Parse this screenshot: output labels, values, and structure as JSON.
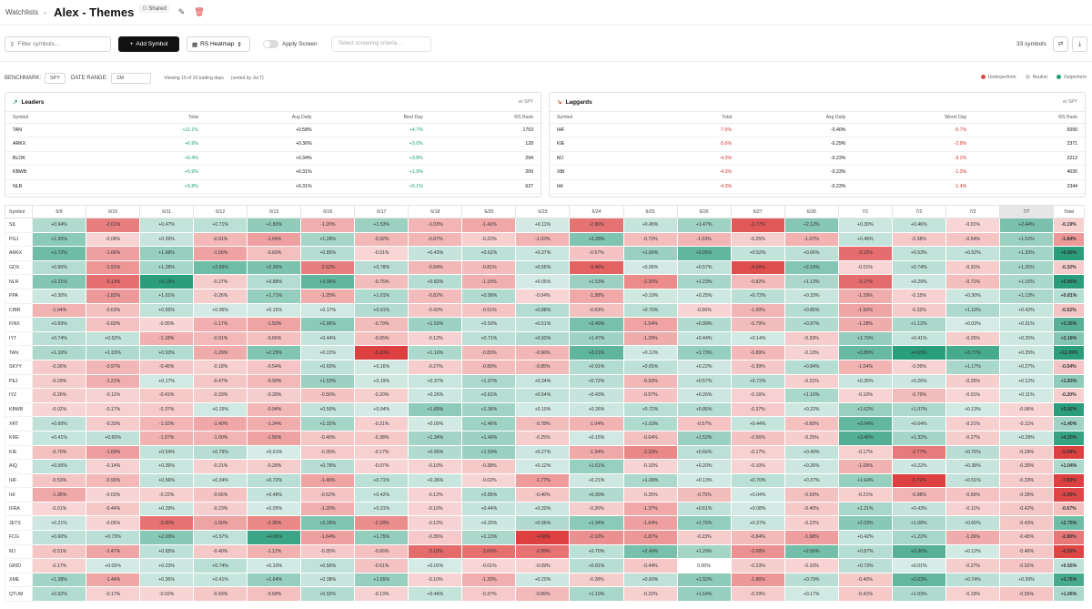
{
  "header": {
    "breadcrumb": "Watchlists",
    "title": "Alex - Themes",
    "shared_label": "Shared"
  },
  "toolbar": {
    "filter_placeholder": "Filter symbols...",
    "add_symbol": "Add Symbol",
    "view_select": "RS Heatmap",
    "apply_screen": "Apply Screen",
    "criteria_placeholder": "Select screening criteria...",
    "symbol_count": "33 symbols"
  },
  "benchmark": {
    "label": "BENCHMARK:",
    "value": "SPY",
    "date_range_label": "DATE RANGE:",
    "date_range": "1M",
    "viewing": "Viewing 19 of 19 trading days",
    "sorted": "(sorted by Jul 7)"
  },
  "legend": {
    "underperform": "Underperform",
    "neutral": "Neutral",
    "outperform": "Outperform"
  },
  "colors": {
    "pos": "#1b9a70",
    "neg": "#d03434",
    "strong_pos": "#3aa58a",
    "strong_neg": "#dd4d4d"
  },
  "leaders": {
    "title": "Leaders",
    "subtitle": "vs SPY",
    "columns": [
      "Symbol",
      "Total",
      "Avg Daily",
      "Best Day",
      "RS Rank"
    ],
    "rows": [
      [
        "TAN",
        "+11.1%",
        "+0.58%",
        "+4.7%",
        "1753"
      ],
      [
        "ARKX",
        "+6.9%",
        "+0.36%",
        "+3.0%",
        "128"
      ],
      [
        "BLOK",
        "+6.4%",
        "+0.34%",
        "+3.8%",
        "294"
      ],
      [
        "KBWB",
        "+5.9%",
        "+0.31%",
        "+1.9%",
        "209"
      ],
      [
        "NLR",
        "+5.8%",
        "+0.31%",
        "+5.1%",
        "627"
      ]
    ]
  },
  "laggards": {
    "title": "Laggards",
    "subtitle": "vs SPY",
    "columns": [
      "Symbol",
      "Total",
      "Avg Daily",
      "Worst Day",
      "RS Rank"
    ],
    "rows": [
      [
        "IHF",
        "-7.6%",
        "-0.40%",
        "-5.7%",
        "5090"
      ],
      [
        "KIE",
        "-5.6%",
        "-0.29%",
        "-2.8%",
        "2371"
      ],
      [
        "MJ",
        "-4.3%",
        "-0.23%",
        "-3.2%",
        "2212"
      ],
      [
        "XBI",
        "-4.3%",
        "-0.23%",
        "-1.3%",
        "4030"
      ],
      [
        "IHI",
        "-4.3%",
        "-0.23%",
        "-1.4%",
        "2344"
      ]
    ]
  },
  "heatmap": {
    "columns": [
      "Symbol",
      "6/9",
      "6/10",
      "6/11",
      "6/12",
      "6/13",
      "6/16",
      "6/17",
      "6/18",
      "6/20",
      "6/23",
      "6/24",
      "6/25",
      "6/26",
      "6/27",
      "6/30",
      "7/1",
      "7/2",
      "7/3",
      "7/7",
      "Total"
    ],
    "rows": [
      {
        "s": "SIL",
        "v": [
          "+0.94%",
          "-2.61%",
          "+0.47%",
          "+0.71%",
          "+1.80%",
          "-1.20%",
          "+1.53%",
          "-1.03%",
          "-1.41%",
          "+0.11%",
          "-2.96%",
          "+0.45%",
          "+1.47%",
          "-3.77%",
          "+2.12%",
          "+0.30%",
          "+0.46%",
          "-0.01%",
          "+2.44%"
        ],
        "t": "-0.19%"
      },
      {
        "s": "PGJ",
        "v": [
          "+1.95%",
          "-0.08%",
          "+0.39%",
          "-0.91%",
          "-1.64%",
          "+1.28%",
          "-0.92%",
          "-0.97%",
          "-0.22%",
          "-1.02%",
          "+2.28%",
          "-0.72%",
          "-1.03%",
          "-0.25%",
          "-1.07%",
          "+0.49%",
          "-0.38%",
          "-0.54%",
          "+1.52%"
        ],
        "t": "-1.84%"
      },
      {
        "s": "ARKX",
        "v": [
          "+2.72%",
          "-1.66%",
          "+1.68%",
          "-1.56%",
          "-0.69%",
          "+0.85%",
          "-0.01%",
          "+0.43%",
          "+0.62%",
          "+0.37%",
          "-0.57%",
          "+1.60%",
          "+3.05%",
          "+0.52%",
          "+0.66%",
          "-3.15%",
          "+0.53%",
          "+0.52%",
          "+1.33%"
        ],
        "t": "+6.89%"
      },
      {
        "s": "GDX",
        "v": [
          "+0.90%",
          "-1.91%",
          "+1.28%",
          "+2.66%",
          "+2.36%",
          "-2.62%",
          "+0.78%",
          "-0.94%",
          "-0.81%",
          "+0.56%",
          "-3.46%",
          "+0.06%",
          "+0.57%",
          "-4.09%",
          "+2.14%",
          "-0.01%",
          "+0.74%",
          "-0.31%",
          "+1.25%"
        ],
        "t": "-0.32%"
      },
      {
        "s": "NLR",
        "v": [
          "+2.21%",
          "-3.13%",
          "+5.13%",
          "-0.27%",
          "+0.88%",
          "+3.06%",
          "-0.75%",
          "+0.83%",
          "-1.15%",
          "+0.05%",
          "+1.53%",
          "-2.25%",
          "+1.23%",
          "-0.82%",
          "+1.13%",
          "-3.17%",
          "+0.29%",
          "-0.71%",
          "+1.15%"
        ],
        "t": "+5.85%"
      },
      {
        "s": "PPA",
        "v": [
          "+0.30%",
          "-1.82%",
          "+1.01%",
          "-0.26%",
          "+1.71%",
          "-1.25%",
          "+1.01%",
          "-0.82%",
          "+0.96%",
          "-0.04%",
          "-1.38%",
          "+0.19%",
          "+0.25%",
          "+0.72%",
          "+0.33%",
          "-1.29%",
          "-0.15%",
          "+0.30%",
          "+1.13%"
        ],
        "t": "+0.81%"
      },
      {
        "s": "CIBR",
        "v": [
          "-1.04%",
          "-0.63%",
          "+0.55%",
          "+0.06%",
          "+0.15%",
          "+0.17%",
          "+0.91%",
          "-0.42%",
          "-0.51%",
          "+0.88%",
          "-0.63%",
          "+0.70%",
          "-0.06%",
          "-1.00%",
          "+0.85%",
          "-1.50%",
          "-0.32%",
          "+1.10%",
          "+0.42%"
        ],
        "t": "-0.52%"
      },
      {
        "s": "FINX",
        "v": [
          "+0.69%",
          "-0.60%",
          "-0.05%",
          "-1.17%",
          "-1.50%",
          "+1.96%",
          "-0.79%",
          "+1.50%",
          "+0.50%",
          "+0.51%",
          "+2.49%",
          "-1.54%",
          "+0.99%",
          "-0.79%",
          "+0.97%",
          "-1.28%",
          "+1.12%",
          "+0.03%",
          "+0.31%"
        ],
        "t": "+3.35%"
      },
      {
        "s": "IYT",
        "v": [
          "+0.74%",
          "+0.52%",
          "-1.18%",
          "-0.91%",
          "-0.66%",
          "+0.44%",
          "-0.65%",
          "-0.12%",
          "+0.71%",
          "+0.93%",
          "+1.47%",
          "-1.29%",
          "+0.44%",
          "+0.14%",
          "-0.33%",
          "+1.70%",
          "+0.41%",
          "-0.25%",
          "+0.25%"
        ],
        "t": "+2.18%"
      },
      {
        "s": "TAN",
        "v": [
          "+1.10%",
          "+1.03%",
          "+0.93%",
          "-1.29%",
          "+2.25%",
          "+0.22%",
          "-5.30%",
          "+1.10%",
          "-0.83%",
          "-0.96%",
          "+3.11%",
          "+0.12%",
          "+1.73%",
          "-0.89%",
          "-0.13%",
          "+2.89%",
          "+4.65%",
          "+3.77%",
          "+0.25%"
        ],
        "t": "+11.09%"
      },
      {
        "s": "SKYY",
        "v": [
          "-0.36%",
          "-0.97%",
          "-0.46%",
          "-0.18%",
          "-0.54%",
          "+0.60%",
          "+0.16%",
          "-0.27%",
          "-0.80%",
          "-0.85%",
          "+0.91%",
          "+0.65%",
          "+0.22%",
          "-0.39%",
          "+0.84%",
          "-1.04%",
          "-0.09%",
          "+1.17%",
          "+0.27%"
        ],
        "t": "-0.54%"
      },
      {
        "s": "PEJ",
        "v": [
          "-0.29%",
          "-1.21%",
          "+0.17%",
          "-0.47%",
          "-0.90%",
          "+1.53%",
          "+0.19%",
          "+0.37%",
          "+1.07%",
          "+0.34%",
          "+0.72%",
          "-0.93%",
          "+0.57%",
          "+0.72%",
          "-0.21%",
          "+0.35%",
          "+0.26%",
          "-0.25%",
          "+0.12%"
        ],
        "t": "+1.83%"
      },
      {
        "s": "IYZ",
        "v": [
          "-0.26%",
          "-0.11%",
          "-0.41%",
          "-0.33%",
          "-0.28%",
          "-0.56%",
          "-0.20%",
          "+0.26%",
          "+0.81%",
          "+0.54%",
          "+0.43%",
          "-0.57%",
          "+0.26%",
          "-0.16%",
          "+1.16%",
          "-0.10%",
          "-0.79%",
          "-0.01%",
          "+0.11%"
        ],
        "t": "-0.20%"
      },
      {
        "s": "KBWB",
        "v": [
          "-0.02%",
          "-0.17%",
          "-0.37%",
          "+0.15%",
          "-0.94%",
          "+0.50%",
          "+0.04%",
          "+1.89%",
          "+1.36%",
          "+0.10%",
          "+0.26%",
          "+0.72%",
          "+0.85%",
          "-0.37%",
          "+0.22%",
          "+1.62%",
          "+1.07%",
          "+0.13%",
          "-0.06%"
        ],
        "t": "+5.92%"
      },
      {
        "s": "XRT",
        "v": [
          "+0.60%",
          "-0.33%",
          "-1.02%",
          "-1.40%",
          "-1.24%",
          "+1.32%",
          "-0.21%",
          "+0.09%",
          "+1.46%",
          "-0.78%",
          "-1.04%",
          "+1.03%",
          "-0.57%",
          "+0.44%",
          "-0.65%",
          "+3.04%",
          "+0.64%",
          "-0.21%",
          "-0.11%"
        ],
        "t": "+1.40%"
      },
      {
        "s": "KRE",
        "v": [
          "+0.41%",
          "+0.60%",
          "-1.07%",
          "-1.00%",
          "-1.56%",
          "-0.49%",
          "-0.38%",
          "+1.34%",
          "+1.49%",
          "-0.25%",
          "+0.15%",
          "-0.64%",
          "+1.52%",
          "-0.56%",
          "-0.25%",
          "+3.46%",
          "+1.32%",
          "-0.27%",
          "+0.28%"
        ],
        "t": "+4.20%"
      },
      {
        "s": "KIE",
        "v": [
          "-0.70%",
          "-1.69%",
          "+0.54%",
          "+0.79%",
          "+0.01%",
          "-0.35%",
          "-0.17%",
          "+0.95%",
          "+1.59%",
          "+0.27%",
          "-1.34%",
          "-2.33%",
          "+0.66%",
          "-0.17%",
          "+0.49%",
          "-0.17%",
          "-2.77%",
          "+0.76%",
          "-0.29%"
        ],
        "t": "-5.59%"
      },
      {
        "s": "AIQ",
        "v": [
          "+0.56%",
          "-0.14%",
          "+0.36%",
          "-0.21%",
          "-0.28%",
          "+0.78%",
          "-0.07%",
          "-0.10%",
          "-0.38%",
          "+0.12%",
          "+1.61%",
          "-0.10%",
          "+0.20%",
          "-0.10%",
          "+0.26%",
          "-1.09%",
          "+0.22%",
          "+0.38%",
          "-0.30%"
        ],
        "t": "+1.04%"
      },
      {
        "s": "IHF",
        "v": [
          "-0.53%",
          "-0.90%",
          "+0.56%",
          "+0.34%",
          "+0.72%",
          "-1.49%",
          "+0.71%",
          "+0.36%",
          "-0.02%",
          "-1.77%",
          "+0.21%",
          "+1.08%",
          "+0.13%",
          "+0.70%",
          "+0.37%",
          "+1.64%",
          "-5.72%",
          "+0.51%",
          "-0.33%"
        ],
        "t": "-7.60%"
      },
      {
        "s": "IHI",
        "v": [
          "-1.36%",
          "-0.03%",
          "-0.22%",
          "-0.56%",
          "+0.48%",
          "-0.52%",
          "+0.42%",
          "-0.12%",
          "+0.85%",
          "-0.46%",
          "+0.99%",
          "-0.25%",
          "-0.75%",
          "+0.04%",
          "-0.63%",
          "-0.21%",
          "-0.98%",
          "-0.56%",
          "-0.39%"
        ],
        "t": "-4.30%"
      },
      {
        "s": "IFRA",
        "v": [
          "-0.01%",
          "-0.44%",
          "+0.29%",
          "-0.23%",
          "+0.05%",
          "-1.20%",
          "+0.31%",
          "-0.10%",
          "+0.44%",
          "+0.30%",
          "-0.26%",
          "-1.37%",
          "+0.61%",
          "+0.08%",
          "-0.40%",
          "+1.21%",
          "+0.43%",
          "-0.11%",
          "-0.42%"
        ],
        "t": "-0.67%"
      },
      {
        "s": "JETS",
        "v": [
          "+0.21%",
          "-0.05%",
          "-3.00%",
          "-1.50%",
          "-2.36%",
          "+2.28%",
          "-2.18%",
          "-0.12%",
          "+0.25%",
          "+0.96%",
          "+1.94%",
          "-1.64%",
          "+1.76%",
          "+0.37%",
          "-0.22%",
          "+2.03%",
          "+1.08%",
          "+0.60%",
          "-0.43%"
        ],
        "t": "+2.75%"
      },
      {
        "s": "FCG",
        "v": [
          "+0.60%",
          "+0.73%",
          "+2.03%",
          "+0.57%",
          "+4.06%",
          "-1.64%",
          "+1.75%",
          "-0.35%",
          "+1.13%",
          "-4.68%",
          "-2.10%",
          "-1.87%",
          "-0.23%",
          "-0.84%",
          "-1.68%",
          "+0.42%",
          "+1.22%",
          "-1.26%",
          "-0.45%"
        ],
        "t": "-2.80%"
      },
      {
        "s": "MJ",
        "v": [
          "-0.51%",
          "-1.47%",
          "+0.65%",
          "-0.40%",
          "-1.12%",
          "-0.35%",
          "-0.66%",
          "-3.18%",
          "-3.06%",
          "-2.99%",
          "+0.70%",
          "+2.49%",
          "+1.29%",
          "-2.08%",
          "+2.56%",
          "+0.87%",
          "+3.36%",
          "+0.12%",
          "-0.46%"
        ],
        "t": "-4.33%"
      },
      {
        "s": "GRID",
        "v": [
          "-0.17%",
          "+0.05%",
          "+0.23%",
          "+0.74%",
          "+0.10%",
          "+0.56%",
          "-0.61%",
          "+0.02%",
          "-0.01%",
          "-0.09%",
          "+0.81%",
          "-0.44%",
          "0.00%",
          "-0.23%",
          "-0.10%",
          "+0.73%",
          "+0.01%",
          "-0.27%",
          "-0.52%"
        ],
        "t": "+0.55%"
      },
      {
        "s": "XME",
        "v": [
          "+1.38%",
          "-1.44%",
          "+0.36%",
          "+0.41%",
          "+1.64%",
          "+0.38%",
          "+1.65%",
          "-0.10%",
          "-1.20%",
          "+0.20%",
          "-0.28%",
          "+0.60%",
          "+1.92%",
          "-1.86%",
          "+0.79%",
          "-0.40%",
          "+3.03%",
          "+0.74%",
          "+0.39%"
        ],
        "t": "+3.76%"
      },
      {
        "s": "QTUM",
        "v": [
          "+0.92%",
          "-0.17%",
          "-0.02%",
          "-0.43%",
          "-0.68%",
          "+0.92%",
          "-0.13%",
          "+0.46%",
          "-0.37%",
          "-0.85%",
          "+1.19%",
          "-0.22%",
          "+1.64%",
          "-0.29%",
          "+0.17%",
          "-0.41%",
          "+1.03%",
          "-0.19%",
          "-0.55%"
        ],
        "t": "+1.06%"
      }
    ]
  }
}
